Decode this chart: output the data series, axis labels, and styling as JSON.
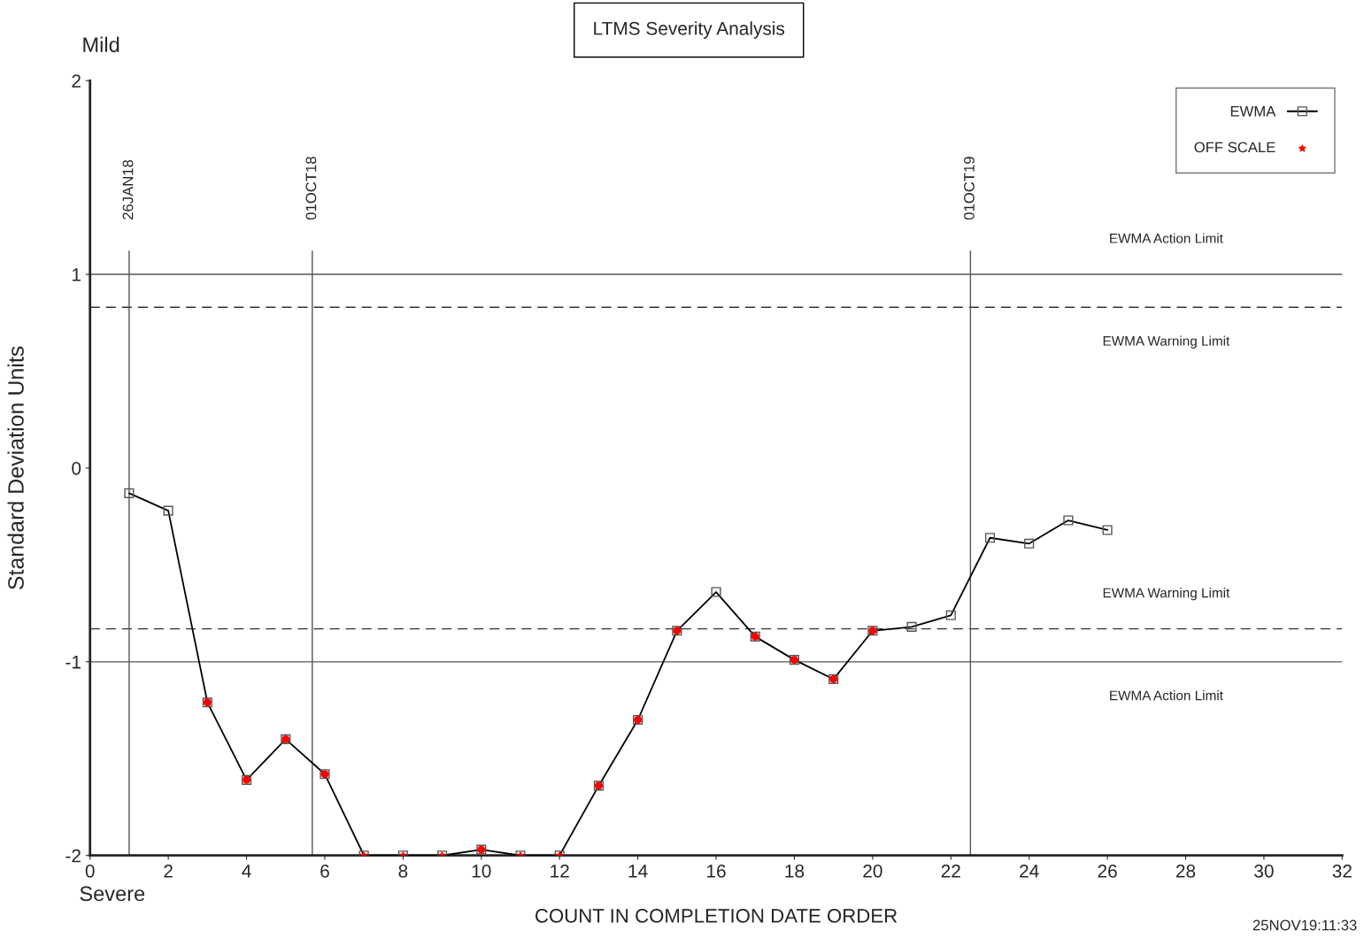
{
  "chart_data": {
    "type": "line",
    "title": "LTMS Severity Analysis",
    "xlabel": "COUNT IN COMPLETION DATE ORDER",
    "ylabel": "Standard Deviation Units",
    "series": [
      {
        "name": "EWMA",
        "color": "#000000",
        "marker": "square",
        "x": [
          1,
          2,
          3,
          4,
          5,
          6,
          7,
          8,
          9,
          10,
          11,
          12,
          13,
          14,
          15,
          16,
          17,
          18,
          19,
          20,
          21,
          22,
          23,
          24,
          25,
          26
        ],
        "values": [
          -0.13,
          -0.22,
          -1.21,
          -1.61,
          -1.4,
          -1.58,
          -2.0,
          -2.0,
          -2.0,
          -1.97,
          -2.0,
          -2.0,
          -1.64,
          -1.3,
          -0.84,
          -0.64,
          -0.87,
          -0.99,
          -1.09,
          -0.84,
          -0.82,
          -0.76,
          -0.36,
          -0.39,
          -0.27,
          -0.32
        ]
      },
      {
        "name": "OFF SCALE",
        "type": "scatter",
        "color": "#ff0000",
        "marker": "star",
        "x": [
          7,
          8,
          9,
          11,
          12
        ],
        "values": [
          -2.0,
          -2.0,
          -2.0,
          -2.0,
          -2.0
        ]
      },
      {
        "type": "scatter",
        "color": "#ff0000",
        "marker": "circle",
        "x": [
          3,
          4,
          5,
          6,
          10,
          13,
          14,
          15,
          17,
          18,
          19,
          20
        ],
        "values": [
          -1.21,
          -1.61,
          -1.4,
          -1.58,
          -1.97,
          -1.64,
          -1.3,
          -0.84,
          -0.87,
          -0.99,
          -1.09,
          -0.84
        ]
      }
    ],
    "xlim": [
      0,
      32
    ],
    "xticks": [
      0,
      2,
      4,
      6,
      8,
      10,
      12,
      14,
      16,
      18,
      20,
      22,
      24,
      26,
      28,
      30,
      32
    ],
    "ylim": [
      -2,
      2
    ],
    "yticks": [
      -2,
      -1,
      0,
      1,
      2
    ],
    "ref_lines": [
      {
        "axis": "y",
        "value": 1,
        "label": "EWMA Action Limit",
        "color": "#555555",
        "line_style": "solid"
      },
      {
        "axis": "y",
        "value": 0.83,
        "label": "EWMA Warning Limit",
        "color": "#333333",
        "line_style": "dashed"
      },
      {
        "axis": "y",
        "value": -0.83,
        "label": "EWMA Warning Limit",
        "color": "#333333",
        "line_style": "dashed"
      },
      {
        "axis": "y",
        "value": -1,
        "label": "EWMA Action Limit",
        "color": "#555555",
        "line_style": "solid"
      },
      {
        "axis": "x",
        "value": 1,
        "label": "26JAN18",
        "color": "#555555",
        "line_style": "solid"
      },
      {
        "axis": "x",
        "value": 5.68,
        "label": "01OCT18",
        "color": "#555555",
        "line_style": "solid"
      },
      {
        "axis": "x",
        "value": 22.5,
        "label": "01OCT19",
        "color": "#555555",
        "line_style": "solid"
      }
    ],
    "annotations": [
      "Mild",
      "Severe",
      "25NOV19:11:33"
    ],
    "legend": "top right",
    "grid": false
  }
}
